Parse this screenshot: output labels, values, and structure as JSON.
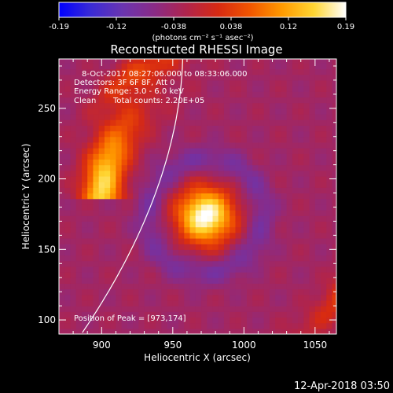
{
  "colorbar": {
    "ticks": [
      "-0.19",
      "-0.12",
      "-0.038",
      "0.038",
      "0.12",
      "0.19"
    ],
    "unit": "(photons cm⁻² s⁻¹ asec⁻²)",
    "range": [
      -0.19,
      0.19
    ],
    "stops": [
      "#0000ff",
      "#3a2bd6",
      "#6a35b0",
      "#8a2b86",
      "#b0244c",
      "#d72a12",
      "#f25600",
      "#ff9a00",
      "#ffd633",
      "#ffffff"
    ]
  },
  "chart_data": {
    "type": "heatmap",
    "title": "Reconstructed RHESSI Image",
    "xlabel": "Heliocentric X (arcsec)",
    "ylabel": "Heliocentric Y (arcsec)",
    "xlim": [
      870,
      1065
    ],
    "ylim": [
      90,
      285
    ],
    "xticks": [
      900,
      950,
      1000,
      1050
    ],
    "yticks": [
      100,
      150,
      200,
      250
    ],
    "peak": [
      973,
      174
    ],
    "annotations": [
      "8-Oct-2017 08:27:06.000 to 08:33:06.000",
      "Detectors: 3F 6F 8F, Att 0",
      "Energy Range: 3.0 - 6.0 keV"
    ],
    "clean_label": "Clean",
    "total_counts": "Total counts: 2.20E+05",
    "peak_label": "Position of Peak = [973,174]"
  },
  "footer": {
    "timestamp": "12-Apr-2018 03:50"
  }
}
